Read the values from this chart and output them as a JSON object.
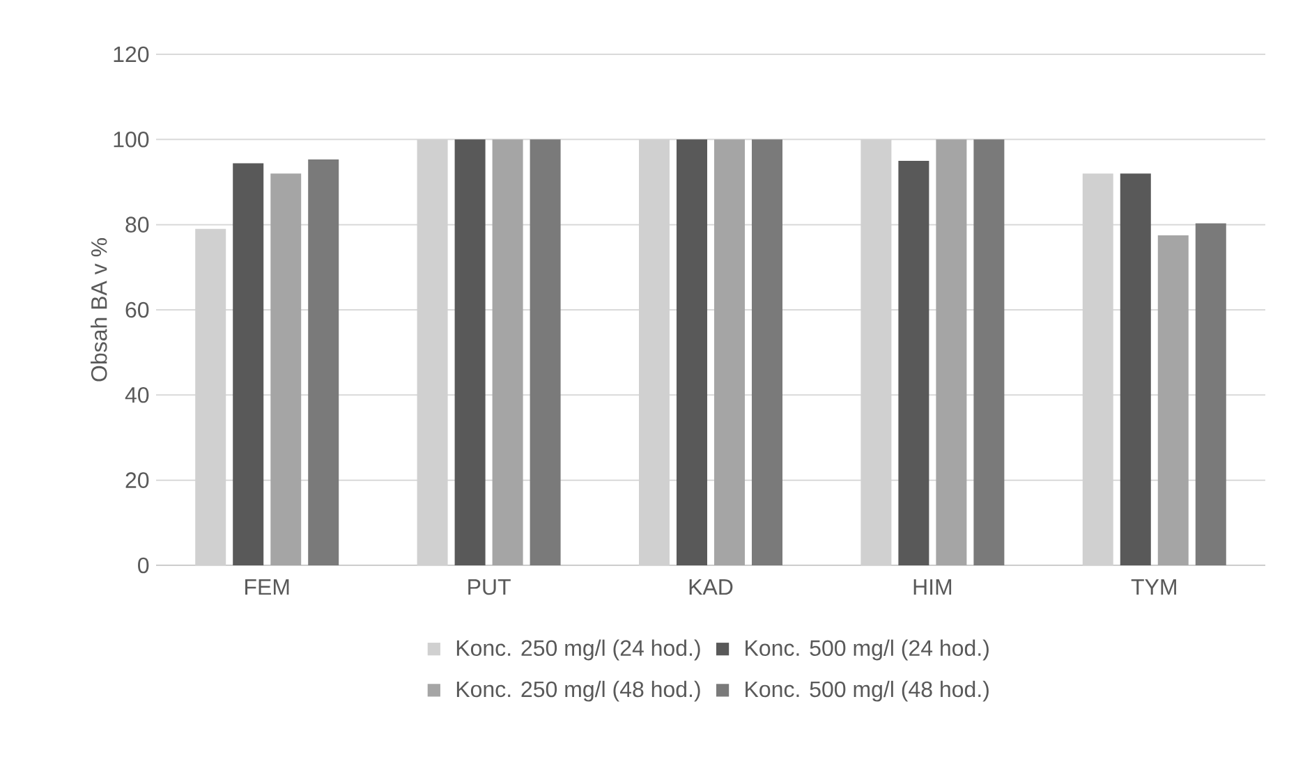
{
  "chart_data": {
    "type": "bar",
    "ylabel": "Obsah BA v %",
    "categories": [
      "FEM",
      "PUT",
      "KAD",
      "HIM",
      "TYM"
    ],
    "series": [
      {
        "name": "Konc. 250 mg/l (24 hod.)",
        "color": "#d0d0d0",
        "values": [
          79,
          100,
          100,
          100,
          92
        ]
      },
      {
        "name": "Konc. 500 mg/l (24 hod.)",
        "color": "#595959",
        "values": [
          94.4,
          100,
          100,
          95,
          92
        ]
      },
      {
        "name": "Konc. 250 mg/l (48 hod.)",
        "color": "#a5a5a5",
        "values": [
          92,
          100,
          100,
          100,
          77.5
        ]
      },
      {
        "name": "Konc. 500 mg/l (48 hod.)",
        "color": "#7a7a7a",
        "values": [
          95.3,
          100,
          100,
          100,
          80.3
        ]
      }
    ],
    "ylim": [
      0,
      120
    ],
    "yticks": [
      0,
      20,
      40,
      60,
      80,
      100,
      120
    ],
    "grid": "y",
    "legend": "bottom"
  }
}
